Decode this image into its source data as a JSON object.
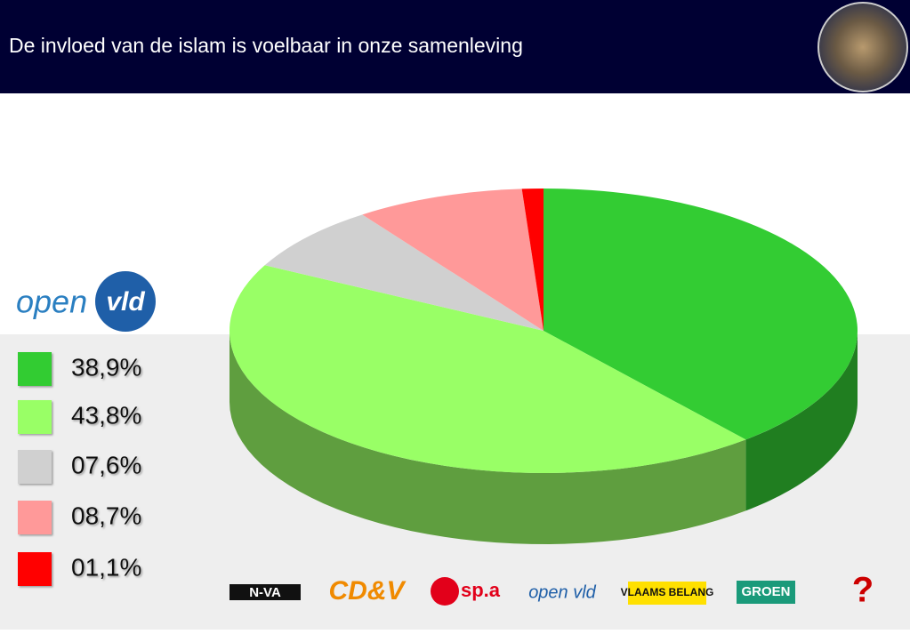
{
  "chart_data": {
    "type": "pie",
    "title": "De invloed van de islam is voelbaar in onze samenleving",
    "values": [
      38.9,
      43.8,
      7.6,
      8.7,
      1.1
    ],
    "value_labels": [
      "38,9%",
      "43,8%",
      "07,6%",
      "08,7%",
      "01,1%"
    ],
    "colors": [
      "#33cc33",
      "#99ff66",
      "#d0d0d0",
      "#ff9999",
      "#ff0000"
    ],
    "start_angle": 0,
    "direction": "clockwise",
    "legend": "left"
  },
  "brand_logo": {
    "word": "open",
    "badge": "vld"
  },
  "party_logos": [
    "N-VA",
    "CD&V",
    "sp.a",
    "open vld",
    "VLAAMS BELANG",
    "GROEN",
    "?"
  ]
}
